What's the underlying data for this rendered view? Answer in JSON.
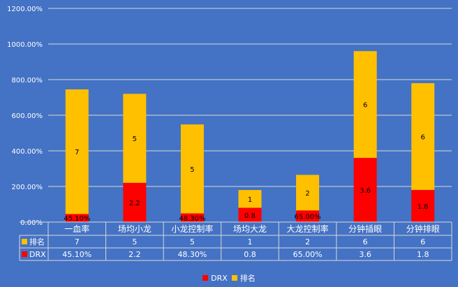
{
  "chart_data": {
    "type": "bar",
    "stacked": true,
    "categories": [
      "一血率",
      "场均小龙",
      "小龙控制率",
      "场均大龙",
      "大龙控制率",
      "分钟插眼",
      "分钟排眼"
    ],
    "series": [
      {
        "name": "DRX",
        "color": "#ff0000",
        "values": [
          45.1,
          2.2,
          48.3,
          0.8,
          65.0,
          3.6,
          1.8
        ],
        "plot_values": [
          45.1,
          220,
          48.3,
          80,
          65.0,
          360,
          180
        ],
        "labels": [
          "45.10%",
          "2.2",
          "48.30%",
          "0.8",
          "65.00%",
          "3.6",
          "1.8"
        ]
      },
      {
        "name": "排名",
        "color": "#ffc000",
        "values": [
          7,
          5,
          5,
          1,
          2,
          6,
          6
        ],
        "plot_values": [
          700,
          500,
          500,
          100,
          200,
          600,
          600
        ],
        "labels": [
          "7",
          "5",
          "5",
          "1",
          "2",
          "6",
          "6"
        ]
      }
    ],
    "yticks": [
      "0.00%",
      "200.00%",
      "400.00%",
      "600.00%",
      "800.00%",
      "1000.00%",
      "1200.00%"
    ],
    "ylim": [
      0,
      1200
    ],
    "grid": true,
    "data_table": true,
    "legend_position": "bottom"
  },
  "legend": {
    "drx": "DRX",
    "rank": "排名"
  }
}
